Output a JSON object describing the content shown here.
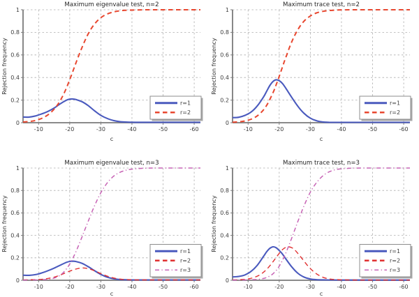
{
  "figure": {
    "background": "#ffffff",
    "text_color": "#262626",
    "grid_color": "#aeaeae",
    "axis_color": "#7a7a7a",
    "legend_border_color": "#8c8c8c",
    "legend_shadow_color": "#a8a8a8"
  },
  "chart_data": [
    {
      "type": "line",
      "title": "Maximum eigenvalue test, n=2",
      "xlabel": "c",
      "ylabel": "Rejection frequency",
      "xlim": [
        -5,
        -62
      ],
      "ylim": [
        0,
        1
      ],
      "xticks": [
        -10,
        -20,
        -30,
        -40,
        -50,
        -60
      ],
      "yticks": [
        0,
        0.2,
        0.4,
        0.6,
        0.8,
        1
      ],
      "grid": true,
      "legend_position": "bottom-right",
      "series": [
        {
          "name": "r=1",
          "color": "#4a5abe",
          "style": "solid",
          "width": 2.1,
          "points": [
            [
              -5,
              0.05
            ],
            [
              -7,
              0.05
            ],
            [
              -9,
              0.06
            ],
            [
              -11,
              0.078
            ],
            [
              -13,
              0.1
            ],
            [
              -15,
              0.13
            ],
            [
              -17,
              0.168
            ],
            [
              -19,
              0.2
            ],
            [
              -20,
              0.208
            ],
            [
              -21,
              0.21
            ],
            [
              -22,
              0.205
            ],
            [
              -24,
              0.185
            ],
            [
              -26,
              0.15
            ],
            [
              -28,
              0.105
            ],
            [
              -30,
              0.065
            ],
            [
              -32,
              0.038
            ],
            [
              -34,
              0.02
            ],
            [
              -36,
              0.01
            ],
            [
              -38,
              0.006
            ],
            [
              -41,
              0.004
            ],
            [
              -45,
              0.004
            ],
            [
              -50,
              0.004
            ],
            [
              -56,
              0.004
            ],
            [
              -62,
              0.004
            ]
          ]
        },
        {
          "name": "r=2",
          "color": "#e8472f",
          "style": "dashed",
          "width": 2.0,
          "points": [
            [
              -5,
              0.006
            ],
            [
              -8,
              0.014
            ],
            [
              -10,
              0.028
            ],
            [
              -12,
              0.052
            ],
            [
              -14,
              0.092
            ],
            [
              -16,
              0.155
            ],
            [
              -18,
              0.25
            ],
            [
              -20,
              0.38
            ],
            [
              -22,
              0.53
            ],
            [
              -24,
              0.67
            ],
            [
              -26,
              0.79
            ],
            [
              -28,
              0.875
            ],
            [
              -30,
              0.93
            ],
            [
              -32,
              0.962
            ],
            [
              -34,
              0.98
            ],
            [
              -36,
              0.99
            ],
            [
              -38,
              0.995
            ],
            [
              -41,
              0.998
            ],
            [
              -45,
              1.0
            ],
            [
              -50,
              1.0
            ],
            [
              -56,
              1.0
            ],
            [
              -62,
              1.0
            ]
          ]
        }
      ]
    },
    {
      "type": "line",
      "title": "Maximum trace test, n=2",
      "xlabel": "c",
      "ylabel": "Rejection frequency",
      "xlim": [
        -5,
        -62
      ],
      "ylim": [
        0,
        1
      ],
      "xticks": [
        -10,
        -20,
        -30,
        -40,
        -50,
        -60
      ],
      "yticks": [
        0,
        0.2,
        0.4,
        0.6,
        0.8,
        1
      ],
      "grid": true,
      "legend_position": "bottom-right",
      "series": [
        {
          "name": "r=1",
          "color": "#4a5abe",
          "style": "solid",
          "width": 2.1,
          "points": [
            [
              -5,
              0.045
            ],
            [
              -7,
              0.048
            ],
            [
              -9,
              0.065
            ],
            [
              -11,
              0.095
            ],
            [
              -13,
              0.15
            ],
            [
              -15,
              0.23
            ],
            [
              -16,
              0.28
            ],
            [
              -17,
              0.33
            ],
            [
              -18,
              0.365
            ],
            [
              -19,
              0.38
            ],
            [
              -20,
              0.372
            ],
            [
              -21,
              0.348
            ],
            [
              -22,
              0.31
            ],
            [
              -24,
              0.225
            ],
            [
              -26,
              0.145
            ],
            [
              -28,
              0.082
            ],
            [
              -30,
              0.04
            ],
            [
              -32,
              0.017
            ],
            [
              -34,
              0.007
            ],
            [
              -36,
              0.004
            ],
            [
              -40,
              0.003
            ],
            [
              -46,
              0.003
            ],
            [
              -54,
              0.003
            ],
            [
              -62,
              0.003
            ]
          ]
        },
        {
          "name": "r=2",
          "color": "#e8472f",
          "style": "dashed",
          "width": 2.0,
          "points": [
            [
              -5,
              0.004
            ],
            [
              -8,
              0.011
            ],
            [
              -10,
              0.022
            ],
            [
              -12,
              0.044
            ],
            [
              -14,
              0.085
            ],
            [
              -16,
              0.155
            ],
            [
              -18,
              0.265
            ],
            [
              -19,
              0.335
            ],
            [
              -20,
              0.41
            ],
            [
              -21,
              0.49
            ],
            [
              -22,
              0.57
            ],
            [
              -24,
              0.715
            ],
            [
              -26,
              0.825
            ],
            [
              -28,
              0.9
            ],
            [
              -30,
              0.945
            ],
            [
              -32,
              0.972
            ],
            [
              -34,
              0.986
            ],
            [
              -36,
              0.993
            ],
            [
              -39,
              0.998
            ],
            [
              -44,
              1.0
            ],
            [
              -52,
              1.0
            ],
            [
              -62,
              1.0
            ]
          ]
        }
      ]
    },
    {
      "type": "line",
      "title": "Maximum eigenvalue test, n=3",
      "xlabel": "c",
      "ylabel": "Rejection frequency",
      "xlim": [
        -5,
        -62
      ],
      "ylim": [
        0,
        1
      ],
      "xticks": [
        -10,
        -20,
        -30,
        -40,
        -50,
        -60
      ],
      "yticks": [
        0,
        0.2,
        0.4,
        0.6,
        0.8,
        1
      ],
      "grid": true,
      "legend_position": "bottom-right",
      "series": [
        {
          "name": "r=1",
          "color": "#4a5abe",
          "style": "solid",
          "width": 2.1,
          "points": [
            [
              -5,
              0.045
            ],
            [
              -7,
              0.044
            ],
            [
              -9,
              0.05
            ],
            [
              -11,
              0.065
            ],
            [
              -13,
              0.085
            ],
            [
              -15,
              0.108
            ],
            [
              -17,
              0.135
            ],
            [
              -19,
              0.16
            ],
            [
              -20,
              0.168
            ],
            [
              -21,
              0.17
            ],
            [
              -22,
              0.167
            ],
            [
              -24,
              0.15
            ],
            [
              -26,
              0.12
            ],
            [
              -28,
              0.085
            ],
            [
              -30,
              0.052
            ],
            [
              -32,
              0.028
            ],
            [
              -34,
              0.014
            ],
            [
              -36,
              0.007
            ],
            [
              -39,
              0.004
            ],
            [
              -44,
              0.003
            ],
            [
              -52,
              0.003
            ],
            [
              -62,
              0.003
            ]
          ]
        },
        {
          "name": "r=2",
          "color": "#e03030",
          "style": "dashed",
          "width": 1.4,
          "points": [
            [
              -5,
              0.004
            ],
            [
              -8,
              0.005
            ],
            [
              -11,
              0.009
            ],
            [
              -13,
              0.016
            ],
            [
              -15,
              0.028
            ],
            [
              -17,
              0.047
            ],
            [
              -19,
              0.07
            ],
            [
              -21,
              0.092
            ],
            [
              -23,
              0.107
            ],
            [
              -24,
              0.11
            ],
            [
              -25,
              0.108
            ],
            [
              -27,
              0.095
            ],
            [
              -29,
              0.072
            ],
            [
              -31,
              0.048
            ],
            [
              -33,
              0.028
            ],
            [
              -35,
              0.015
            ],
            [
              -37,
              0.008
            ],
            [
              -40,
              0.004
            ],
            [
              -45,
              0.003
            ],
            [
              -52,
              0.003
            ],
            [
              -62,
              0.003
            ]
          ]
        },
        {
          "name": "r=3",
          "color": "#c763b5",
          "style": "dashdot",
          "width": 1.5,
          "points": [
            [
              -5,
              0.002
            ],
            [
              -9,
              0.003
            ],
            [
              -12,
              0.006
            ],
            [
              -14,
              0.012
            ],
            [
              -16,
              0.03
            ],
            [
              -18,
              0.07
            ],
            [
              -20,
              0.145
            ],
            [
              -22,
              0.255
            ],
            [
              -24,
              0.39
            ],
            [
              -26,
              0.53
            ],
            [
              -28,
              0.665
            ],
            [
              -30,
              0.78
            ],
            [
              -32,
              0.865
            ],
            [
              -34,
              0.925
            ],
            [
              -36,
              0.96
            ],
            [
              -38,
              0.98
            ],
            [
              -40,
              0.99
            ],
            [
              -43,
              0.997
            ],
            [
              -47,
              1.0
            ],
            [
              -54,
              1.0
            ],
            [
              -62,
              1.0
            ]
          ]
        }
      ]
    },
    {
      "type": "line",
      "title": "Maximum trace test, n=3",
      "xlabel": "c",
      "ylabel": "Rejection frequency",
      "xlim": [
        -5,
        -62
      ],
      "ylim": [
        0,
        1
      ],
      "xticks": [
        -10,
        -20,
        -30,
        -40,
        -50,
        -60
      ],
      "yticks": [
        0,
        0.2,
        0.4,
        0.6,
        0.8,
        1
      ],
      "grid": true,
      "legend_position": "bottom-right",
      "series": [
        {
          "name": "r=1",
          "color": "#4a5abe",
          "style": "solid",
          "width": 2.1,
          "points": [
            [
              -5,
              0.03
            ],
            [
              -7,
              0.034
            ],
            [
              -9,
              0.048
            ],
            [
              -11,
              0.08
            ],
            [
              -13,
              0.135
            ],
            [
              -15,
              0.215
            ],
            [
              -16,
              0.255
            ],
            [
              -17,
              0.285
            ],
            [
              -18,
              0.298
            ],
            [
              -19,
              0.29
            ],
            [
              -20,
              0.265
            ],
            [
              -21,
              0.235
            ],
            [
              -22,
              0.195
            ],
            [
              -24,
              0.12
            ],
            [
              -26,
              0.062
            ],
            [
              -28,
              0.028
            ],
            [
              -30,
              0.011
            ],
            [
              -32,
              0.005
            ],
            [
              -35,
              0.003
            ],
            [
              -40,
              0.002
            ],
            [
              -48,
              0.002
            ],
            [
              -62,
              0.002
            ]
          ]
        },
        {
          "name": "r=2",
          "color": "#e03030",
          "style": "dashed",
          "width": 1.4,
          "points": [
            [
              -5,
              0.003
            ],
            [
              -8,
              0.006
            ],
            [
              -10,
              0.012
            ],
            [
              -12,
              0.026
            ],
            [
              -14,
              0.052
            ],
            [
              -16,
              0.098
            ],
            [
              -18,
              0.165
            ],
            [
              -20,
              0.24
            ],
            [
              -21,
              0.272
            ],
            [
              -22,
              0.292
            ],
            [
              -23,
              0.298
            ],
            [
              -24,
              0.29
            ],
            [
              -25,
              0.27
            ],
            [
              -27,
              0.205
            ],
            [
              -29,
              0.135
            ],
            [
              -31,
              0.078
            ],
            [
              -33,
              0.04
            ],
            [
              -35,
              0.018
            ],
            [
              -37,
              0.009
            ],
            [
              -40,
              0.004
            ],
            [
              -45,
              0.002
            ],
            [
              -52,
              0.002
            ],
            [
              -62,
              0.002
            ]
          ]
        },
        {
          "name": "r=3",
          "color": "#c763b5",
          "style": "dashdot",
          "width": 1.5,
          "points": [
            [
              -5,
              0.001
            ],
            [
              -9,
              0.003
            ],
            [
              -12,
              0.006
            ],
            [
              -14,
              0.011
            ],
            [
              -16,
              0.025
            ],
            [
              -18,
              0.058
            ],
            [
              -20,
              0.125
            ],
            [
              -22,
              0.235
            ],
            [
              -24,
              0.375
            ],
            [
              -25,
              0.45
            ],
            [
              -26,
              0.525
            ],
            [
              -28,
              0.665
            ],
            [
              -30,
              0.785
            ],
            [
              -32,
              0.87
            ],
            [
              -34,
              0.93
            ],
            [
              -36,
              0.965
            ],
            [
              -38,
              0.985
            ],
            [
              -40,
              0.993
            ],
            [
              -43,
              0.998
            ],
            [
              -47,
              1.0
            ],
            [
              -54,
              1.0
            ],
            [
              -62,
              1.0
            ]
          ]
        }
      ]
    }
  ]
}
